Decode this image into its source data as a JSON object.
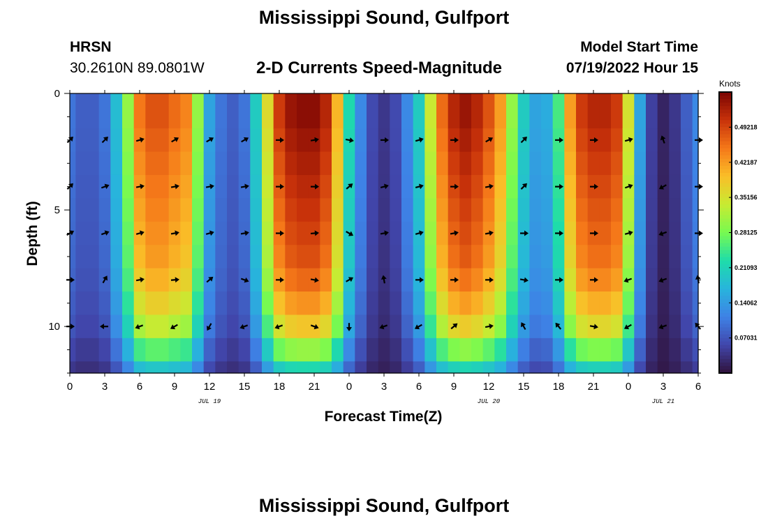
{
  "header": {
    "title": "Mississippi Sound, Gulfport",
    "station": "HRSN",
    "coords": "30.2610N  89.0801W",
    "subtitle": "2-D Currents Speed-Magnitude",
    "model_start_label": "Model Start Time",
    "model_start_value": "07/19/2022 Hour 15"
  },
  "footer": {
    "second_title": "Mississippi Sound, Gulfport"
  },
  "chart_data": {
    "type": "heatmap",
    "title": "2-D Currents Speed-Magnitude",
    "xlabel": "Forecast Time(Z)",
    "ylabel": "Depth (ft)",
    "x_ticks": [
      "0",
      "3",
      "6",
      "9",
      "12",
      "15",
      "18",
      "21",
      "0",
      "3",
      "6",
      "9",
      "12",
      "15",
      "18",
      "21",
      "0",
      "3",
      "6"
    ],
    "x_dates": [
      {
        "label": "JUL 19",
        "tick_index": 4
      },
      {
        "label": "JUL 20",
        "tick_index": 12
      },
      {
        "label": "JUL 21",
        "tick_index": 17
      }
    ],
    "y_ticks": [
      0,
      5,
      10
    ],
    "y_range": [
      0,
      12
    ],
    "colorbar": {
      "title": "Knots",
      "range": [
        0,
        0.5625
      ],
      "tick_labels": [
        "0.49218",
        "0.42187",
        "0.35156",
        "0.28125",
        "0.21093",
        "0.14062",
        "0.07031"
      ],
      "tick_values": [
        0.49218,
        0.42187,
        0.35156,
        0.28125,
        0.21093,
        0.14062,
        0.07031
      ]
    },
    "time_hours": [
      0,
      1,
      2,
      3,
      4,
      5,
      6,
      7,
      8,
      9,
      10,
      11,
      12,
      13,
      14,
      15,
      16,
      17,
      18,
      19,
      20,
      21,
      22,
      23,
      24,
      25,
      26,
      27,
      28,
      29,
      30,
      31,
      32,
      33,
      34,
      35,
      36,
      37,
      38,
      39,
      40,
      41,
      42,
      43,
      44,
      45,
      46,
      47,
      48,
      49,
      50,
      51,
      52,
      53,
      54
    ],
    "surface_speed": [
      0.1,
      0.08,
      0.08,
      0.1,
      0.18,
      0.3,
      0.45,
      0.48,
      0.48,
      0.46,
      0.44,
      0.3,
      0.15,
      0.1,
      0.08,
      0.1,
      0.2,
      0.36,
      0.5,
      0.54,
      0.55,
      0.55,
      0.52,
      0.4,
      0.22,
      0.12,
      0.06,
      0.04,
      0.06,
      0.12,
      0.2,
      0.34,
      0.46,
      0.52,
      0.54,
      0.52,
      0.48,
      0.42,
      0.3,
      0.2,
      0.15,
      0.16,
      0.25,
      0.42,
      0.5,
      0.52,
      0.52,
      0.5,
      0.35,
      0.15,
      0.05,
      0.02,
      0.04,
      0.08,
      0.12
    ],
    "depth_levels_ft": [
      0,
      1,
      2,
      3,
      4,
      5,
      6,
      7,
      8,
      9,
      10,
      11,
      12
    ],
    "depth_factor": [
      1.0,
      1.0,
      0.98,
      0.96,
      0.94,
      0.92,
      0.9,
      0.88,
      0.84,
      0.78,
      0.7,
      0.55,
      0.4
    ],
    "arrow_times": [
      0,
      3,
      6,
      9,
      12,
      15,
      18,
      21,
      24,
      27,
      30,
      33,
      36,
      39,
      42,
      45,
      48,
      51,
      54
    ],
    "arrow_rows": [
      {
        "depth": 2,
        "angles": [
          45,
          45,
          15,
          30,
          30,
          30,
          0,
          10,
          -10,
          0,
          15,
          0,
          30,
          45,
          0,
          0,
          15,
          110,
          0
        ]
      },
      {
        "depth": 4,
        "angles": [
          45,
          20,
          10,
          10,
          10,
          10,
          0,
          0,
          40,
          15,
          15,
          0,
          10,
          45,
          0,
          0,
          20,
          -150,
          0
        ]
      },
      {
        "depth": 6,
        "angles": [
          30,
          20,
          15,
          10,
          15,
          10,
          0,
          5,
          -30,
          10,
          15,
          10,
          10,
          0,
          0,
          0,
          15,
          -160,
          0
        ]
      },
      {
        "depth": 8,
        "angles": [
          0,
          60,
          10,
          5,
          40,
          -20,
          0,
          -10,
          30,
          100,
          0,
          0,
          0,
          -10,
          0,
          0,
          -160,
          -160,
          100
        ]
      },
      {
        "depth": 10,
        "angles": [
          0,
          -180,
          -160,
          -150,
          -120,
          -160,
          -160,
          -20,
          -90,
          -160,
          -150,
          40,
          10,
          120,
          130,
          -10,
          -150,
          -160,
          130
        ]
      }
    ]
  }
}
